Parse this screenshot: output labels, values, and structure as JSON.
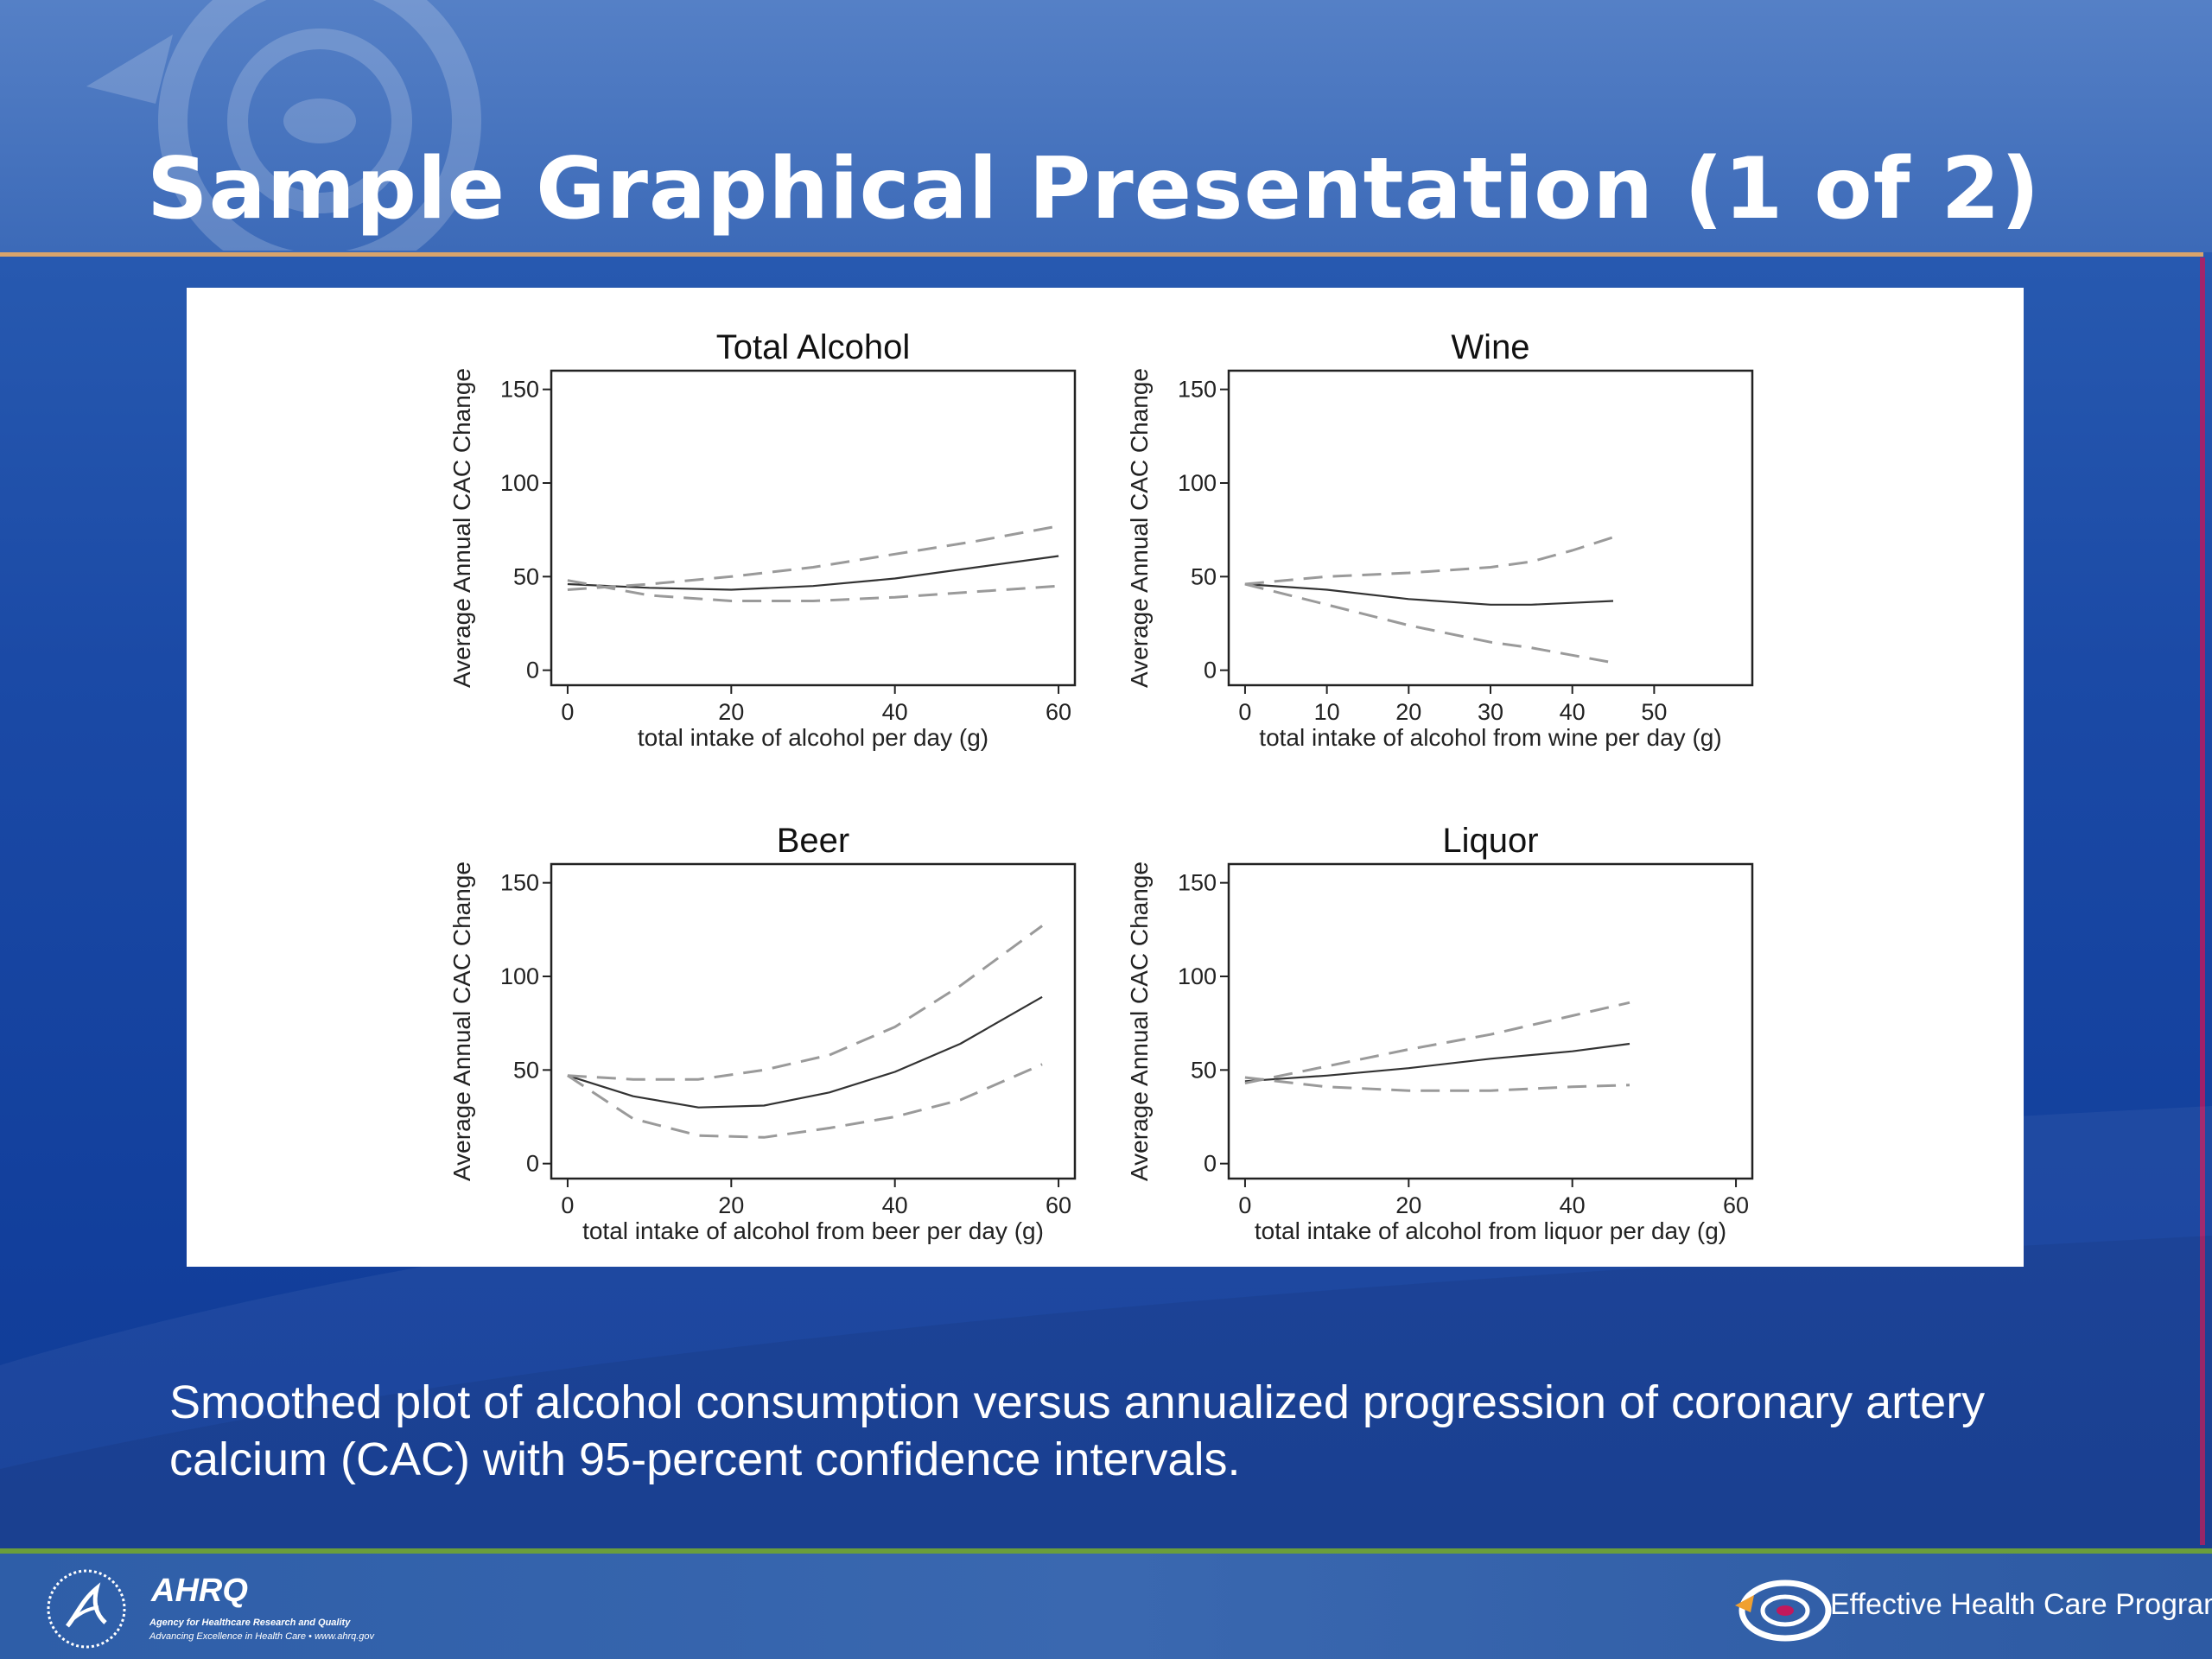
{
  "slide": {
    "title": "Sample Graphical Presentation (1 of 2)",
    "caption": "Smoothed plot of alcohol consumption versus annualized progression of coronary artery calcium (CAC) with 95-percent confidence intervals."
  },
  "footer": {
    "left_logo_name": "AHRQ",
    "left_logo_tagline": "Agency for Healthcare Research and Quality",
    "left_logo_subline": "Advancing Excellence in Health Care • www.ahrq.gov",
    "right_logo_text": "Effective Health Care Program"
  },
  "colors": {
    "estimate_line": "#333333",
    "ci_line": "#9a9a9a",
    "title_rule": "#d9a46b",
    "footer_rule": "#6a9e3c"
  },
  "chart_data": [
    {
      "type": "line",
      "title": "Total Alcohol",
      "xlabel": "total intake of alcohol per day (g)",
      "ylabel": "Average Annual CAC Change",
      "xlim": [
        -2,
        62
      ],
      "ylim": [
        -8,
        160
      ],
      "xticks": [
        0,
        20,
        40,
        60
      ],
      "yticks": [
        0,
        50,
        100,
        150
      ],
      "grid": false,
      "series": [
        {
          "style": "solid",
          "x": [
            0,
            10,
            20,
            30,
            40,
            50,
            60
          ],
          "y": [
            46,
            44,
            43,
            45,
            49,
            55,
            61
          ]
        },
        {
          "style": "dashed",
          "x": [
            0,
            10,
            20,
            30,
            40,
            50,
            60
          ],
          "y": [
            43,
            46,
            50,
            55,
            62,
            69,
            77
          ]
        },
        {
          "style": "dashed",
          "x": [
            0,
            10,
            20,
            30,
            40,
            50,
            60
          ],
          "y": [
            48,
            40,
            37,
            37,
            39,
            42,
            45
          ]
        }
      ]
    },
    {
      "type": "line",
      "title": "Wine",
      "xlabel": "total intake of alcohol from wine per day (g)",
      "ylabel": "Average Annual CAC Change",
      "xlim": [
        -2,
        62
      ],
      "ylim": [
        -8,
        160
      ],
      "xticks": [
        0,
        10,
        20,
        30,
        40,
        50
      ],
      "yticks": [
        0,
        50,
        100,
        150
      ],
      "grid": false,
      "series": [
        {
          "style": "solid",
          "x": [
            0,
            10,
            20,
            30,
            35,
            40,
            45
          ],
          "y": [
            46,
            43,
            38,
            35,
            35,
            36,
            37
          ]
        },
        {
          "style": "dashed",
          "x": [
            0,
            10,
            20,
            30,
            35,
            40,
            45
          ],
          "y": [
            46,
            50,
            52,
            55,
            58,
            64,
            71
          ]
        },
        {
          "style": "dashed",
          "x": [
            0,
            10,
            20,
            30,
            35,
            40,
            45
          ],
          "y": [
            46,
            35,
            24,
            15,
            12,
            8,
            4
          ]
        }
      ]
    },
    {
      "type": "line",
      "title": "Beer",
      "xlabel": "total intake of alcohol from beer per day (g)",
      "ylabel": "Average Annual CAC Change",
      "xlim": [
        -2,
        62
      ],
      "ylim": [
        -8,
        160
      ],
      "xticks": [
        0,
        20,
        40,
        60
      ],
      "yticks": [
        0,
        50,
        100,
        150
      ],
      "grid": false,
      "series": [
        {
          "style": "solid",
          "x": [
            0,
            8,
            16,
            24,
            32,
            40,
            48,
            58
          ],
          "y": [
            47,
            36,
            30,
            31,
            38,
            49,
            64,
            89
          ]
        },
        {
          "style": "dashed",
          "x": [
            0,
            8,
            16,
            24,
            32,
            40,
            48,
            58
          ],
          "y": [
            47,
            45,
            45,
            50,
            58,
            73,
            95,
            127
          ]
        },
        {
          "style": "dashed",
          "x": [
            0,
            8,
            16,
            24,
            32,
            40,
            48,
            58
          ],
          "y": [
            47,
            24,
            15,
            14,
            19,
            25,
            34,
            53
          ]
        }
      ]
    },
    {
      "type": "line",
      "title": "Liquor",
      "xlabel": "total intake of alcohol from liquor per day (g)",
      "ylabel": "Average Annual CAC Change",
      "xlim": [
        -2,
        62
      ],
      "ylim": [
        -8,
        160
      ],
      "xticks": [
        0,
        20,
        40,
        60
      ],
      "yticks": [
        0,
        50,
        100,
        150
      ],
      "grid": false,
      "series": [
        {
          "style": "solid",
          "x": [
            0,
            10,
            20,
            30,
            40,
            47
          ],
          "y": [
            44,
            47,
            51,
            56,
            60,
            64
          ]
        },
        {
          "style": "dashed",
          "x": [
            0,
            10,
            20,
            30,
            40,
            47
          ],
          "y": [
            43,
            52,
            61,
            69,
            79,
            86
          ]
        },
        {
          "style": "dashed",
          "x": [
            0,
            10,
            20,
            30,
            40,
            47
          ],
          "y": [
            46,
            41,
            39,
            39,
            41,
            42
          ]
        }
      ]
    }
  ]
}
